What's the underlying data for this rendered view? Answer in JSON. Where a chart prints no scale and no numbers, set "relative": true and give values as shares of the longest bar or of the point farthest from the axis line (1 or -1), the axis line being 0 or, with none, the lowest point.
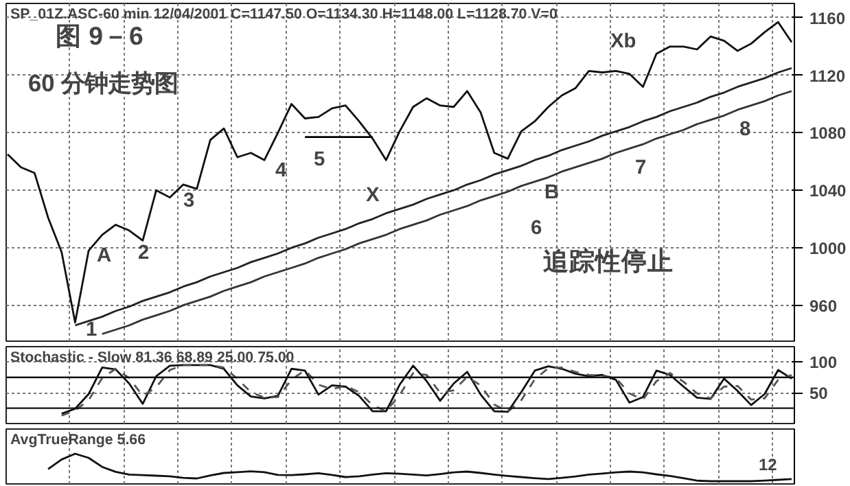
{
  "chart_data": [
    {
      "type": "line",
      "title": "SP_01Z.ASC-60 min   12/04/2001   C=1147.50   O=1134.30   H=1148.00   L=1128.70   V=0",
      "categories": [
        null,
        null,
        null,
        null,
        null,
        null,
        null,
        null,
        null,
        null,
        null,
        null,
        null,
        null,
        null,
        null,
        null,
        null,
        null,
        null,
        null,
        null,
        null,
        null,
        null,
        null,
        null,
        null,
        null,
        null,
        null,
        null,
        null,
        null,
        null,
        null,
        null,
        null,
        null,
        null,
        null,
        null,
        null,
        null,
        null,
        null,
        null,
        null,
        null,
        null,
        null,
        null,
        null,
        null,
        null,
        null,
        null,
        null,
        null
      ],
      "ylim": [
        935,
        1170
      ],
      "yticks": [
        960,
        1000,
        1040,
        1080,
        1120,
        1160
      ],
      "tick_labels": "y",
      "grid": true,
      "series": [
        {
          "color": "#111111",
          "values": [
            1065,
            1056,
            1052,
            1021,
            997,
            948,
            998,
            1009,
            1016,
            1012,
            1005,
            1040,
            1035,
            1044,
            1041,
            1075,
            1083,
            1063,
            1066,
            1061,
            1080,
            1100,
            1090,
            1091,
            1097,
            1099,
            1088,
            1076,
            1061,
            1081,
            1098,
            1104,
            1099,
            1098,
            1109,
            1094,
            1066,
            1062,
            1081,
            1088,
            1098,
            1106,
            1111,
            1123,
            1122,
            1123,
            1121,
            1112,
            1135,
            1140,
            1140,
            1138,
            1147,
            1144,
            1137,
            1142,
            1150,
            1157,
            1143
          ]
        },
        {
          "color": "#222222",
          "values": [
            null,
            null,
            null,
            null,
            null,
            946,
            949,
            952,
            956,
            959,
            963,
            966,
            969,
            973,
            976,
            980,
            983,
            986,
            990,
            993,
            996,
            1000,
            1003,
            1007,
            1010,
            1013,
            1017,
            1020,
            1024,
            1027,
            1030,
            1034,
            1037,
            1040,
            1044,
            1047,
            1051,
            1054,
            1057,
            1061,
            1064,
            1068,
            1071,
            1074,
            1078,
            1081,
            1084,
            1088,
            1091,
            1095,
            1098,
            1101,
            1105,
            1108,
            1112,
            1115,
            1118,
            1122,
            1125
          ]
        },
        {
          "color": "#333333",
          "values": [
            null,
            null,
            null,
            null,
            null,
            null,
            null,
            940,
            943,
            946,
            950,
            953,
            956,
            960,
            963,
            966,
            970,
            973,
            976,
            980,
            983,
            986,
            989,
            993,
            996,
            999,
            1003,
            1006,
            1009,
            1013,
            1016,
            1019,
            1023,
            1026,
            1029,
            1033,
            1036,
            1039,
            1043,
            1046,
            1049,
            1053,
            1056,
            1059,
            1062,
            1066,
            1069,
            1072,
            1076,
            1079,
            1082,
            1086,
            1089,
            1092,
            1096,
            1099,
            1102,
            1106,
            1109
          ]
        },
        {
          "color": "#000000",
          "values": [
            null,
            null,
            null,
            null,
            null,
            null,
            null,
            null,
            null,
            null,
            null,
            null,
            null,
            null,
            null,
            null,
            null,
            null,
            null,
            null,
            null,
            null,
            1077,
            1077,
            1077,
            1077,
            1077,
            1077,
            null,
            null,
            null,
            null,
            null,
            null,
            null,
            null,
            null,
            null,
            null,
            null,
            null,
            null,
            null,
            null,
            null,
            null,
            null,
            null,
            null,
            null,
            null,
            null,
            null,
            null,
            null,
            null,
            null,
            null,
            null
          ]
        }
      ],
      "annotations": [
        "图 9－6",
        "60 分钟走势图",
        "追踪性停止",
        "1",
        "A",
        "2",
        "3",
        "4",
        "5",
        "X",
        "B",
        "6",
        "7",
        "8",
        "Xb"
      ]
    },
    {
      "type": "line",
      "title": "Stochastic - Slow  81.36  68.89  25.00  75.00",
      "categories": [
        null,
        null,
        null,
        null,
        null,
        null,
        null,
        null,
        null,
        null,
        null,
        null,
        null,
        null,
        null,
        null,
        null,
        null,
        null,
        null,
        null,
        null,
        null,
        null,
        null,
        null,
        null,
        null,
        null,
        null,
        null,
        null,
        null,
        null,
        null,
        null,
        null,
        null,
        null,
        null,
        null,
        null,
        null,
        null,
        null,
        null,
        null,
        null,
        null,
        null,
        null,
        null,
        null,
        null,
        null,
        null,
        null,
        null,
        null
      ],
      "ylim": [
        0,
        125
      ],
      "yticks": [
        50,
        100
      ],
      "tick_labels": "y",
      "grid": true,
      "series": [
        {
          "color": "#111111",
          "values": [
            null,
            null,
            null,
            null,
            16,
            24,
            48,
            91,
            88,
            65,
            32,
            77,
            94,
            95,
            95,
            95,
            89,
            62,
            44,
            41,
            45,
            89,
            86,
            47,
            62,
            60,
            45,
            20,
            20,
            63,
            94,
            69,
            37,
            65,
            84,
            47,
            20,
            19,
            51,
            86,
            93,
            89,
            81,
            77,
            79,
            71,
            34,
            43,
            86,
            79,
            60,
            42,
            40,
            73,
            53,
            30,
            48,
            87,
            73
          ]
        },
        {
          "color": "#555555",
          "line_style": "dashed",
          "values": [
            null,
            null,
            null,
            null,
            13,
            21,
            38,
            74,
            89,
            74,
            45,
            59,
            87,
            95,
            95,
            95,
            91,
            73,
            51,
            42,
            43,
            71,
            87,
            63,
            56,
            61,
            51,
            30,
            20,
            46,
            82,
            79,
            50,
            54,
            76,
            62,
            31,
            19,
            38,
            72,
            90,
            91,
            84,
            79,
            78,
            74,
            49,
            39,
            69,
            82,
            68,
            49,
            41,
            60,
            61,
            39,
            41,
            71,
            79
          ]
        }
      ],
      "ref_lines": [
        {
          "axis": "y",
          "value": 75,
          "color": "#111111"
        },
        {
          "axis": "y",
          "value": 25,
          "color": "#111111"
        }
      ]
    },
    {
      "type": "line",
      "title": "AvgTrueRange  5.66",
      "relative": true,
      "categories": [
        null,
        null,
        null,
        null,
        null,
        null,
        null,
        null,
        null,
        null,
        null,
        null,
        null,
        null,
        null,
        null,
        null,
        null,
        null,
        null,
        null,
        null,
        null,
        null,
        null,
        null,
        null,
        null,
        null,
        null,
        null,
        null,
        null,
        null,
        null,
        null,
        null,
        null,
        null,
        null,
        null,
        null,
        null,
        null,
        null,
        null,
        null,
        null,
        null,
        null,
        null,
        null,
        null,
        null,
        null,
        null,
        null,
        null,
        null
      ],
      "tick_labels": false,
      "grid": "x",
      "series": [
        {
          "color": "#111111",
          "values": [
            null,
            null,
            null,
            0.44,
            0.79,
            1,
            0.85,
            0.52,
            0.34,
            0.24,
            0.22,
            0.2,
            0.18,
            0.12,
            0.1,
            0.21,
            0.3,
            0.33,
            0.36,
            0.33,
            0.23,
            0.22,
            0.25,
            0.29,
            0.23,
            0.15,
            0.18,
            0.24,
            0.29,
            0.27,
            0.24,
            0.21,
            0.26,
            0.32,
            0.35,
            0.3,
            0.24,
            0.19,
            0.15,
            0.11,
            0.08,
            0.12,
            0.17,
            0.24,
            0.28,
            0.32,
            0.35,
            0.32,
            0.25,
            0.19,
            0.11,
            0.02,
            0,
            0,
            0,
            0,
            0.02,
            0.05,
            0.08
          ]
        }
      ],
      "annotations": [
        "12"
      ]
    }
  ]
}
